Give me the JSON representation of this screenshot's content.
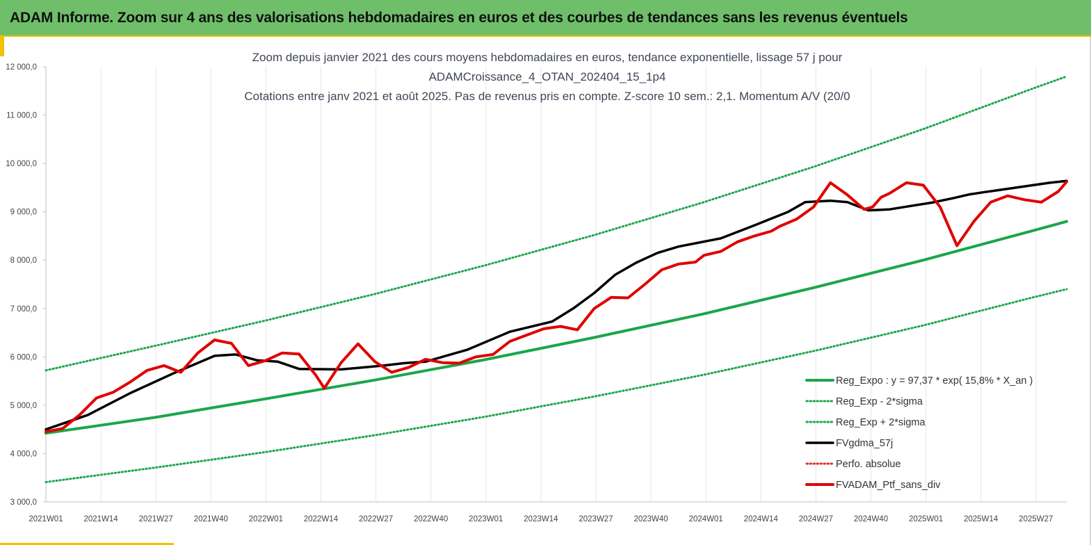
{
  "banner": {
    "title": "ADAM Informe. Zoom sur 4 ans des valorisations hebdomadaires en euros et des courbes de tendances sans les revenus éventuels",
    "background": "#6fbf6a",
    "accent": "#f2c200"
  },
  "chart_data": {
    "type": "line",
    "title_lines": [
      "Zoom depuis janvier 2021 des cours moyens hebdomadaires  en euros, tendance exponentielle, lissage 57 j pour",
      "ADAMCroissance_4_OTAN_202404_15_1p4",
      "Cotations entre janv 2021 et août 2025. Pas de revenus pris en compte. Z-score 10 sem.: 2,1. Momentum A/V (20/0"
    ],
    "x_ticks": [
      "2021W01",
      "2021W14",
      "2021W27",
      "2021W40",
      "2022W01",
      "2022W14",
      "2022W27",
      "2022W40",
      "2023W01",
      "2023W14",
      "2023W27",
      "2023W40",
      "2024W01",
      "2024W14",
      "2024W27",
      "2024W40",
      "2025W01",
      "2025W14",
      "2025W27"
    ],
    "y_ticks": [
      "3 000,0",
      "4 000,0",
      "5 000,0",
      "6 000,0",
      "7 000,0",
      "8 000,0",
      "9 000,0",
      "10 000,0",
      "11 000,0",
      "12 000,0"
    ],
    "ylim": [
      3000,
      12000
    ],
    "xlim": [
      0,
      242
    ],
    "grid": "vertical",
    "legend_position": "bottom-right",
    "legend": [
      {
        "label": "Reg_Expo : y = 97,37 * exp( 15,8% *  X_an )",
        "color": "#1aa64b",
        "style": "solid"
      },
      {
        "label": "Reg_Exp - 2*sigma",
        "color": "#1aa64b",
        "style": "dotted"
      },
      {
        "label": "Reg_Exp + 2*sigma",
        "color": "#1aa64b",
        "style": "dotted"
      },
      {
        "label": "FVgdma_57j",
        "color": "#000000",
        "style": "solid"
      },
      {
        "label": "Perfo. absolue",
        "color": "#e0302b",
        "style": "dotted"
      },
      {
        "label": "FVADAM_Ptf_sans_div",
        "color": "#e00000",
        "style": "solid"
      }
    ],
    "series": [
      {
        "name": "Reg_Expo : y = 97,37 * exp( 15,8% *  X_an )",
        "color": "#1aa64b",
        "x": [
          0,
          26,
          52,
          78,
          104,
          130,
          156,
          182,
          208,
          234,
          242
        ],
        "values": [
          4420,
          4750,
          5130,
          5520,
          5940,
          6400,
          6890,
          7430,
          8000,
          8610,
          8800
        ]
      },
      {
        "name": "Reg_Exp - 2*sigma",
        "color": "#1aa64b",
        "x": [
          0,
          26,
          52,
          78,
          104,
          130,
          156,
          182,
          208,
          234,
          242
        ],
        "values": [
          3410,
          3710,
          4030,
          4380,
          4760,
          5180,
          5630,
          6120,
          6650,
          7230,
          7400
        ]
      },
      {
        "name": "Reg_Exp + 2*sigma",
        "color": "#1aa64b",
        "x": [
          0,
          26,
          52,
          78,
          104,
          130,
          156,
          182,
          208,
          234,
          242
        ],
        "values": [
          5720,
          6230,
          6750,
          7300,
          7890,
          8520,
          9200,
          9930,
          10710,
          11550,
          11800
        ]
      },
      {
        "name": "FVgdma_57j",
        "color": "#000000",
        "x": [
          0,
          10,
          20,
          30,
          40,
          45,
          50,
          55,
          60,
          70,
          80,
          85,
          90,
          100,
          110,
          120,
          125,
          130,
          135,
          140,
          145,
          150,
          160,
          168,
          172,
          176,
          180,
          186,
          190,
          195,
          200,
          205,
          210,
          215,
          219,
          222,
          226,
          230,
          234,
          238,
          242
        ],
        "values": [
          4500,
          4800,
          5250,
          5650,
          6020,
          6050,
          5930,
          5900,
          5750,
          5740,
          5820,
          5870,
          5900,
          6150,
          6520,
          6730,
          7000,
          7320,
          7700,
          7950,
          8150,
          8280,
          8450,
          8720,
          8860,
          9000,
          9200,
          9230,
          9200,
          9030,
          9050,
          9120,
          9190,
          9280,
          9360,
          9400,
          9450,
          9500,
          9550,
          9600,
          9640
        ]
      },
      {
        "name": "FVADAM_Ptf_sans_div",
        "color": "#e00000",
        "x": [
          0,
          4,
          8,
          12,
          16,
          20,
          24,
          28,
          32,
          36,
          40,
          44,
          48,
          52,
          56,
          60,
          64,
          66,
          70,
          74,
          78,
          82,
          86,
          90,
          94,
          98,
          102,
          106,
          110,
          114,
          118,
          122,
          126,
          130,
          134,
          138,
          142,
          146,
          150,
          154,
          156,
          160,
          164,
          168,
          172,
          174,
          178,
          182,
          186,
          190,
          194,
          196,
          198,
          200,
          204,
          208,
          212,
          216,
          220,
          224,
          228,
          232,
          236,
          240,
          242
        ],
        "values": [
          4450,
          4520,
          4800,
          5150,
          5270,
          5480,
          5720,
          5820,
          5680,
          6080,
          6350,
          6280,
          5820,
          5920,
          6080,
          6060,
          5620,
          5350,
          5880,
          6270,
          5900,
          5680,
          5780,
          5950,
          5880,
          5870,
          6000,
          6050,
          6320,
          6450,
          6580,
          6630,
          6560,
          7000,
          7230,
          7220,
          7500,
          7800,
          7920,
          7960,
          8100,
          8180,
          8380,
          8500,
          8600,
          8700,
          8850,
          9100,
          9600,
          9350,
          9050,
          9100,
          9300,
          9380,
          9600,
          9550,
          9100,
          8300,
          8800,
          9200,
          9330,
          9250,
          9200,
          9420,
          9620
        ]
      }
    ]
  }
}
